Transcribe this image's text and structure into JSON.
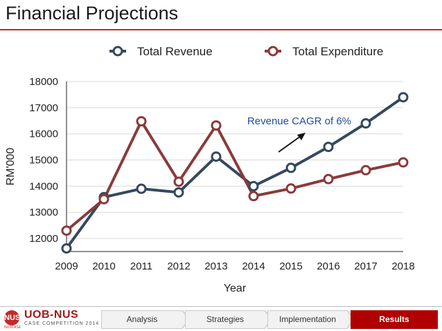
{
  "slide": {
    "title": "Financial Projections"
  },
  "chart_data": {
    "type": "line",
    "title": "",
    "xlabel": "Year",
    "ylabel": "RM'000",
    "x": [
      2009,
      2010,
      2011,
      2012,
      2013,
      2014,
      2015,
      2016,
      2017,
      2018
    ],
    "ylim": [
      11500,
      18000
    ],
    "yticks": [
      12000,
      13000,
      14000,
      15000,
      16000,
      17000,
      18000
    ],
    "grid": true,
    "legend": "top",
    "series": [
      {
        "name": "Total Revenue",
        "color": "#34495e",
        "values": [
          11620,
          13580,
          13900,
          13760,
          15130,
          14000,
          14700,
          15500,
          16400,
          17400
        ]
      },
      {
        "name": "Total Expenditure",
        "color": "#8b3a3a",
        "values": [
          12300,
          13500,
          16480,
          14170,
          16320,
          13620,
          13910,
          14270,
          14610,
          14910
        ]
      }
    ],
    "annotation": {
      "text": "Revenue CAGR of 6%",
      "color": "#1f4ea0"
    }
  },
  "footer": {
    "logo_text": "UOB-NUS",
    "logo_caption": "CASE COMPETITION 2014",
    "logo_mark": "NUS",
    "logo_sub": "NUSCASE",
    "steps": [
      {
        "label": "Analysis"
      },
      {
        "label": "Strategies"
      },
      {
        "label": "Implementation"
      },
      {
        "label": "Results",
        "active": true
      }
    ]
  }
}
